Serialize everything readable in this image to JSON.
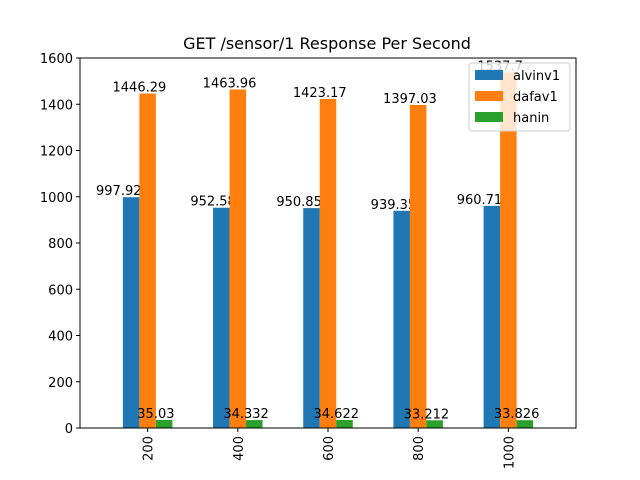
{
  "chart_data": {
    "type": "bar",
    "title": "GET /sensor/1 Response Per Second",
    "xlabel": "",
    "ylabel": "",
    "categories": [
      "200",
      "400",
      "600",
      "800",
      "1000"
    ],
    "series": [
      {
        "name": "alvinv1",
        "color": "#1f77b4",
        "values": [
          997.928,
          952.58,
          950.858,
          939.35,
          960.714
        ]
      },
      {
        "name": "dafav1",
        "color": "#ff7f0e",
        "values": [
          1446.29,
          1463.96,
          1423.17,
          1397.03,
          1537.7
        ]
      },
      {
        "name": "hanin",
        "color": "#2ca02c",
        "values": [
          35.03,
          34.332,
          34.622,
          33.212,
          33.826
        ]
      }
    ],
    "data_labels": [
      [
        "997.928",
        "952.58",
        "950.858",
        "939.35",
        "960.714"
      ],
      [
        "1446.29",
        "1463.96",
        "1423.17",
        "1397.03",
        "1537.7"
      ],
      [
        "35.03",
        "34.332",
        "34.622",
        "33.212",
        "33.826"
      ]
    ],
    "ylim": [
      0,
      1600
    ],
    "yticks": [
      0,
      200,
      400,
      600,
      800,
      1000,
      1200,
      1400,
      1600
    ],
    "grid": false,
    "legend_position": "top-right",
    "xtick_rotation": "vertical"
  }
}
